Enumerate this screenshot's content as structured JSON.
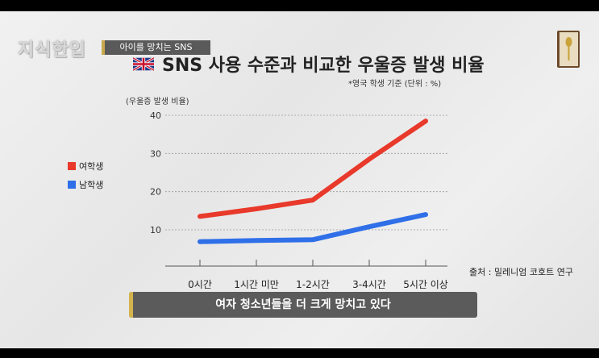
{
  "header": {
    "logo": "지식한입",
    "topic_label": "아이를 망치는 SNS"
  },
  "chart_data": {
    "type": "line",
    "title": "SNS 사용 수준과 비교한 우울증 발생 비율",
    "subtitle": "*영국 학생 기준 (단위 : %)",
    "ylabel": "(우울증 발생 비율)",
    "xlabel": "",
    "categories": [
      "0시간",
      "1시간 미만",
      "1-2시간",
      "3-4시간",
      "5시간 이상"
    ],
    "yticks": [
      10,
      20,
      30,
      40
    ],
    "ylim": [
      0,
      42
    ],
    "grid": true,
    "legend_position": "left",
    "series": [
      {
        "name": "여학생",
        "color": "#e8392b",
        "values": [
          13.5,
          15.5,
          17.8,
          28.5,
          38.5
        ]
      },
      {
        "name": "남학생",
        "color": "#2f6fe8",
        "values": [
          6.9,
          7.2,
          7.4,
          10.8,
          14.0
        ]
      }
    ]
  },
  "source": "출처 : 밀레니엄 코호트 연구",
  "caption": "여자 청소년들을 더 크게 망치고 있다",
  "flag_icon": "uk-flag-icon"
}
